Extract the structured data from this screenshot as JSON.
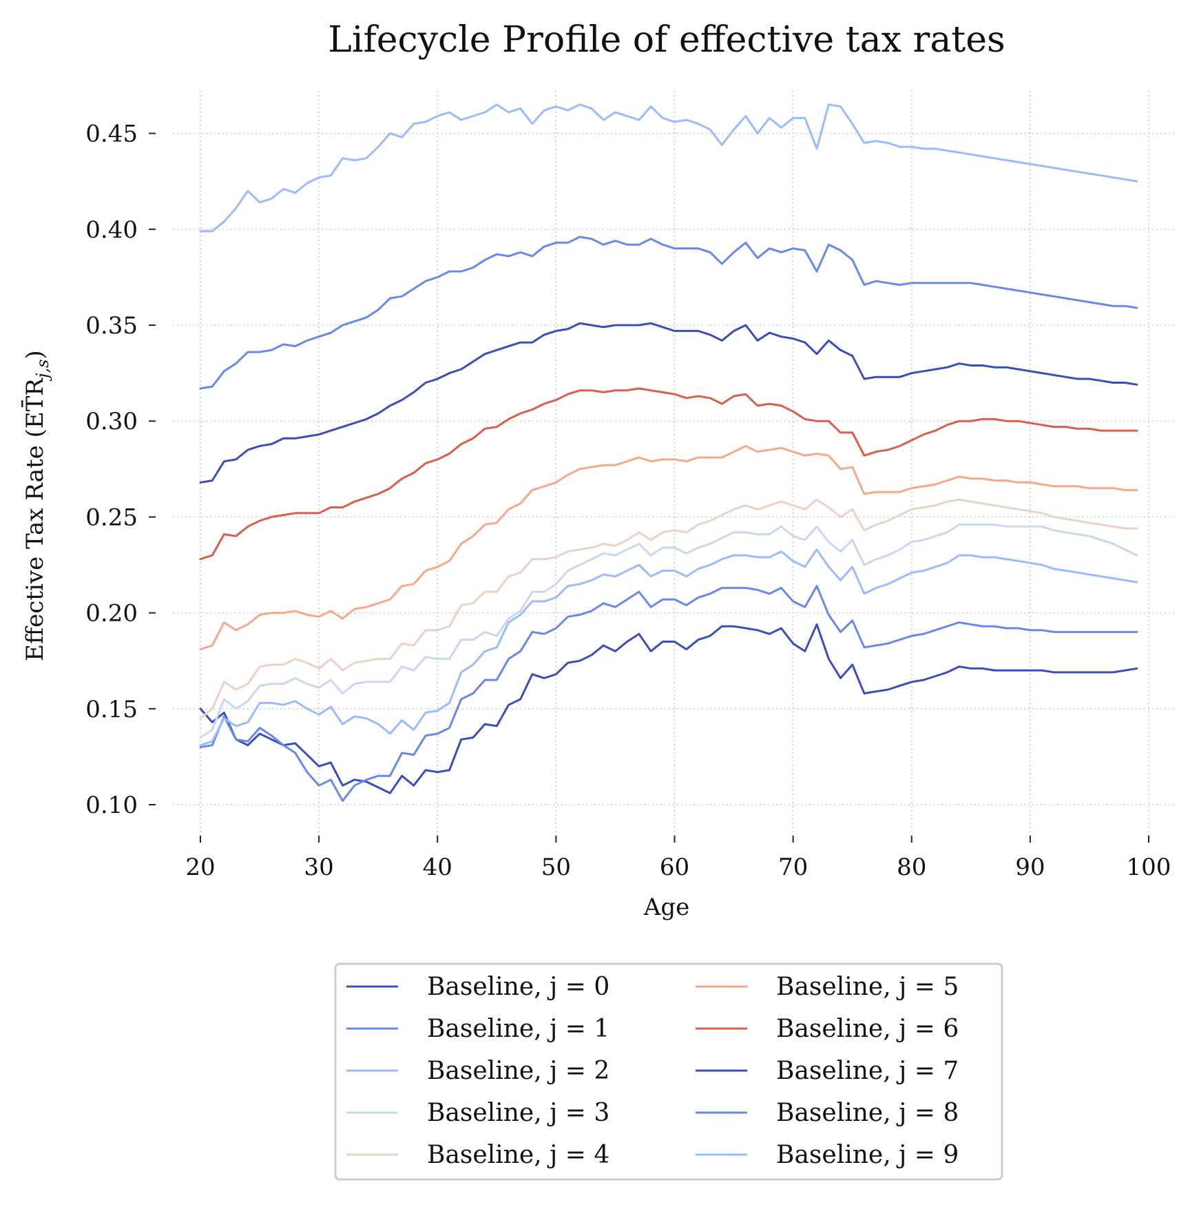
{
  "chart_data": {
    "type": "line",
    "title": "Lifecycle Profile of effective tax rates",
    "xlabel": "Age",
    "ylabel": "Effective Tax Rate (ET̄R",
    "ylabel_sub": "j,s",
    "ylabel_close": ")",
    "xlim": [
      18,
      101
    ],
    "ylim": [
      0.085,
      0.475
    ],
    "xticks": [
      20,
      30,
      40,
      50,
      60,
      70,
      80,
      90,
      100
    ],
    "xtick_labels": [
      "20",
      "30",
      "40",
      "50",
      "60",
      "70",
      "80",
      "90",
      "100"
    ],
    "yticks": [
      0.1,
      0.15,
      0.2,
      0.25,
      0.3,
      0.35,
      0.4,
      0.45
    ],
    "ytick_labels": [
      "0.10",
      "0.15",
      "0.20",
      "0.25",
      "0.30",
      "0.35",
      "0.40",
      "0.45"
    ],
    "grid": true,
    "legend_position": "bottom-center, below plot, 2 columns",
    "x": [
      20,
      21,
      22,
      23,
      24,
      25,
      26,
      27,
      28,
      29,
      30,
      31,
      32,
      33,
      34,
      35,
      36,
      37,
      38,
      39,
      40,
      41,
      42,
      43,
      44,
      45,
      46,
      47,
      48,
      49,
      50,
      51,
      52,
      53,
      54,
      55,
      56,
      57,
      58,
      59,
      60,
      61,
      62,
      63,
      64,
      65,
      66,
      67,
      68,
      69,
      70,
      71,
      72,
      73,
      74,
      75,
      76,
      77,
      78,
      79,
      80,
      81,
      82,
      83,
      84,
      85,
      86,
      87,
      88,
      89,
      90,
      91,
      92,
      93,
      94,
      95,
      96,
      97,
      98,
      99
    ],
    "series": [
      {
        "name": "Baseline, j = 0",
        "color": "#3b4cc0",
        "values": [
          0.15,
          0.143,
          0.148,
          0.134,
          0.131,
          0.137,
          0.134,
          0.131,
          0.132,
          0.126,
          0.12,
          0.122,
          0.11,
          0.113,
          0.112,
          0.109,
          0.106,
          0.115,
          0.11,
          0.118,
          0.117,
          0.118,
          0.134,
          0.135,
          0.142,
          0.141,
          0.152,
          0.155,
          0.168,
          0.166,
          0.168,
          0.174,
          0.175,
          0.178,
          0.183,
          0.18,
          0.185,
          0.189,
          0.18,
          0.185,
          0.185,
          0.181,
          0.186,
          0.188,
          0.193,
          0.193,
          0.192,
          0.191,
          0.189,
          0.192,
          0.184,
          0.18,
          0.194,
          0.176,
          0.166,
          0.173,
          0.158,
          0.159,
          0.16,
          0.162,
          0.164,
          0.165,
          0.167,
          0.169,
          0.172,
          0.171,
          0.171,
          0.17,
          0.17,
          0.17,
          0.17,
          0.17,
          0.169,
          0.169,
          0.169,
          0.169,
          0.169,
          0.169,
          0.17,
          0.171
        ]
      },
      {
        "name": "Baseline, j = 1",
        "color": "#6788ee",
        "values": [
          0.13,
          0.131,
          0.146,
          0.134,
          0.133,
          0.14,
          0.136,
          0.131,
          0.127,
          0.117,
          0.11,
          0.113,
          0.102,
          0.11,
          0.113,
          0.115,
          0.115,
          0.127,
          0.126,
          0.136,
          0.137,
          0.14,
          0.155,
          0.158,
          0.165,
          0.165,
          0.176,
          0.18,
          0.19,
          0.189,
          0.192,
          0.198,
          0.199,
          0.201,
          0.205,
          0.203,
          0.207,
          0.211,
          0.203,
          0.207,
          0.207,
          0.204,
          0.208,
          0.21,
          0.213,
          0.213,
          0.213,
          0.212,
          0.21,
          0.213,
          0.206,
          0.203,
          0.214,
          0.199,
          0.19,
          0.196,
          0.182,
          0.183,
          0.184,
          0.186,
          0.188,
          0.189,
          0.191,
          0.193,
          0.195,
          0.194,
          0.193,
          0.193,
          0.192,
          0.192,
          0.191,
          0.191,
          0.19,
          0.19,
          0.19,
          0.19,
          0.19,
          0.19,
          0.19,
          0.19
        ]
      },
      {
        "name": "Baseline, j = 2",
        "color": "#9abbff",
        "values": [
          0.131,
          0.133,
          0.145,
          0.141,
          0.143,
          0.153,
          0.153,
          0.152,
          0.154,
          0.15,
          0.147,
          0.151,
          0.142,
          0.146,
          0.145,
          0.142,
          0.137,
          0.144,
          0.139,
          0.148,
          0.149,
          0.153,
          0.169,
          0.173,
          0.18,
          0.182,
          0.195,
          0.199,
          0.206,
          0.206,
          0.208,
          0.214,
          0.215,
          0.217,
          0.22,
          0.219,
          0.222,
          0.225,
          0.219,
          0.222,
          0.222,
          0.219,
          0.223,
          0.225,
          0.228,
          0.23,
          0.23,
          0.229,
          0.229,
          0.232,
          0.227,
          0.224,
          0.233,
          0.224,
          0.217,
          0.224,
          0.21,
          0.213,
          0.215,
          0.218,
          0.221,
          0.222,
          0.224,
          0.226,
          0.23,
          0.23,
          0.229,
          0.229,
          0.228,
          0.227,
          0.226,
          0.225,
          0.223,
          0.222,
          0.221,
          0.22,
          0.219,
          0.218,
          0.217,
          0.216
        ]
      },
      {
        "name": "Baseline, j = 3",
        "color": "#c9d7f0",
        "values": [
          0.135,
          0.139,
          0.155,
          0.15,
          0.154,
          0.162,
          0.163,
          0.163,
          0.166,
          0.163,
          0.161,
          0.165,
          0.158,
          0.163,
          0.164,
          0.164,
          0.164,
          0.172,
          0.17,
          0.177,
          0.176,
          0.176,
          0.186,
          0.186,
          0.19,
          0.188,
          0.197,
          0.201,
          0.211,
          0.211,
          0.215,
          0.222,
          0.225,
          0.228,
          0.231,
          0.23,
          0.233,
          0.236,
          0.23,
          0.234,
          0.234,
          0.231,
          0.234,
          0.236,
          0.239,
          0.242,
          0.242,
          0.241,
          0.241,
          0.245,
          0.24,
          0.238,
          0.245,
          0.237,
          0.232,
          0.238,
          0.225,
          0.228,
          0.23,
          0.233,
          0.237,
          0.238,
          0.24,
          0.242,
          0.246,
          0.246,
          0.246,
          0.246,
          0.245,
          0.245,
          0.245,
          0.245,
          0.243,
          0.242,
          0.241,
          0.24,
          0.238,
          0.236,
          0.233,
          0.23
        ]
      },
      {
        "name": "Baseline, j = 4",
        "color": "#edd1c2",
        "values": [
          0.145,
          0.15,
          0.164,
          0.16,
          0.163,
          0.172,
          0.173,
          0.173,
          0.176,
          0.174,
          0.171,
          0.176,
          0.17,
          0.174,
          0.175,
          0.176,
          0.176,
          0.184,
          0.183,
          0.191,
          0.191,
          0.193,
          0.204,
          0.205,
          0.211,
          0.211,
          0.219,
          0.221,
          0.228,
          0.228,
          0.229,
          0.232,
          0.233,
          0.234,
          0.236,
          0.235,
          0.238,
          0.242,
          0.238,
          0.242,
          0.243,
          0.242,
          0.246,
          0.248,
          0.251,
          0.254,
          0.256,
          0.254,
          0.256,
          0.258,
          0.256,
          0.254,
          0.259,
          0.255,
          0.25,
          0.254,
          0.243,
          0.246,
          0.248,
          0.251,
          0.254,
          0.255,
          0.256,
          0.258,
          0.259,
          0.258,
          0.257,
          0.256,
          0.255,
          0.254,
          0.253,
          0.252,
          0.25,
          0.249,
          0.248,
          0.247,
          0.246,
          0.245,
          0.244,
          0.244
        ]
      },
      {
        "name": "Baseline, j = 5",
        "color": "#f7a889",
        "values": [
          0.181,
          0.183,
          0.195,
          0.191,
          0.194,
          0.199,
          0.2,
          0.2,
          0.201,
          0.199,
          0.198,
          0.201,
          0.197,
          0.202,
          0.203,
          0.205,
          0.207,
          0.214,
          0.215,
          0.222,
          0.224,
          0.227,
          0.236,
          0.24,
          0.246,
          0.247,
          0.254,
          0.257,
          0.264,
          0.266,
          0.268,
          0.272,
          0.275,
          0.276,
          0.277,
          0.277,
          0.279,
          0.281,
          0.279,
          0.28,
          0.28,
          0.279,
          0.281,
          0.281,
          0.281,
          0.284,
          0.287,
          0.284,
          0.285,
          0.286,
          0.284,
          0.282,
          0.283,
          0.282,
          0.275,
          0.276,
          0.262,
          0.263,
          0.263,
          0.263,
          0.265,
          0.266,
          0.267,
          0.269,
          0.271,
          0.27,
          0.27,
          0.269,
          0.269,
          0.268,
          0.268,
          0.267,
          0.266,
          0.266,
          0.266,
          0.265,
          0.265,
          0.265,
          0.264,
          0.264
        ]
      },
      {
        "name": "Baseline, j = 6",
        "color": "#dc5d4a",
        "values": [
          0.228,
          0.23,
          0.241,
          0.24,
          0.245,
          0.248,
          0.25,
          0.251,
          0.252,
          0.252,
          0.252,
          0.255,
          0.255,
          0.258,
          0.26,
          0.262,
          0.265,
          0.27,
          0.273,
          0.278,
          0.28,
          0.283,
          0.288,
          0.291,
          0.296,
          0.297,
          0.301,
          0.304,
          0.306,
          0.309,
          0.311,
          0.314,
          0.316,
          0.316,
          0.315,
          0.316,
          0.316,
          0.317,
          0.316,
          0.315,
          0.314,
          0.312,
          0.313,
          0.312,
          0.309,
          0.313,
          0.314,
          0.308,
          0.309,
          0.308,
          0.305,
          0.301,
          0.3,
          0.3,
          0.294,
          0.294,
          0.282,
          0.284,
          0.285,
          0.287,
          0.29,
          0.293,
          0.295,
          0.298,
          0.3,
          0.3,
          0.301,
          0.301,
          0.3,
          0.3,
          0.299,
          0.298,
          0.297,
          0.297,
          0.296,
          0.296,
          0.295,
          0.295,
          0.295,
          0.295
        ]
      },
      {
        "name": "Baseline, j = 7",
        "color": "#3b4cc0",
        "values": [
          0.268,
          0.269,
          0.279,
          0.28,
          0.285,
          0.287,
          0.288,
          0.291,
          0.291,
          0.292,
          0.293,
          0.295,
          0.297,
          0.299,
          0.301,
          0.304,
          0.308,
          0.311,
          0.315,
          0.32,
          0.322,
          0.325,
          0.327,
          0.331,
          0.335,
          0.337,
          0.339,
          0.341,
          0.341,
          0.345,
          0.347,
          0.348,
          0.351,
          0.35,
          0.349,
          0.35,
          0.35,
          0.35,
          0.351,
          0.349,
          0.347,
          0.347,
          0.347,
          0.345,
          0.342,
          0.347,
          0.35,
          0.342,
          0.346,
          0.344,
          0.343,
          0.341,
          0.335,
          0.342,
          0.337,
          0.334,
          0.322,
          0.323,
          0.323,
          0.323,
          0.325,
          0.326,
          0.327,
          0.328,
          0.33,
          0.329,
          0.329,
          0.328,
          0.328,
          0.327,
          0.326,
          0.325,
          0.324,
          0.323,
          0.322,
          0.322,
          0.321,
          0.32,
          0.32,
          0.319
        ]
      },
      {
        "name": "Baseline, j = 8",
        "color": "#6788ee",
        "values": [
          0.317,
          0.318,
          0.326,
          0.33,
          0.336,
          0.336,
          0.337,
          0.34,
          0.339,
          0.342,
          0.344,
          0.346,
          0.35,
          0.352,
          0.354,
          0.358,
          0.364,
          0.365,
          0.369,
          0.373,
          0.375,
          0.378,
          0.378,
          0.38,
          0.384,
          0.387,
          0.386,
          0.388,
          0.386,
          0.391,
          0.393,
          0.393,
          0.396,
          0.395,
          0.392,
          0.394,
          0.392,
          0.392,
          0.395,
          0.392,
          0.39,
          0.39,
          0.39,
          0.388,
          0.382,
          0.388,
          0.393,
          0.385,
          0.39,
          0.388,
          0.39,
          0.389,
          0.378,
          0.392,
          0.389,
          0.384,
          0.371,
          0.373,
          0.372,
          0.371,
          0.372,
          0.372,
          0.372,
          0.372,
          0.372,
          0.372,
          0.371,
          0.37,
          0.369,
          0.368,
          0.367,
          0.366,
          0.365,
          0.364,
          0.363,
          0.362,
          0.361,
          0.36,
          0.36,
          0.359
        ]
      },
      {
        "name": "Baseline, j = 9",
        "color": "#9abbff",
        "values": [
          0.399,
          0.399,
          0.404,
          0.411,
          0.42,
          0.414,
          0.416,
          0.421,
          0.419,
          0.424,
          0.427,
          0.428,
          0.437,
          0.436,
          0.437,
          0.443,
          0.45,
          0.448,
          0.455,
          0.456,
          0.459,
          0.461,
          0.457,
          0.459,
          0.461,
          0.465,
          0.461,
          0.463,
          0.455,
          0.462,
          0.464,
          0.462,
          0.465,
          0.463,
          0.457,
          0.461,
          0.459,
          0.457,
          0.464,
          0.458,
          0.456,
          0.457,
          0.455,
          0.452,
          0.444,
          0.452,
          0.459,
          0.45,
          0.458,
          0.453,
          0.458,
          0.458,
          0.442,
          0.465,
          0.464,
          0.455,
          0.445,
          0.446,
          0.445,
          0.443,
          0.443,
          0.442,
          0.442,
          0.441,
          0.44,
          0.439,
          0.438,
          0.437,
          0.436,
          0.435,
          0.434,
          0.433,
          0.432,
          0.431,
          0.43,
          0.429,
          0.428,
          0.427,
          0.426,
          0.425
        ]
      }
    ]
  }
}
